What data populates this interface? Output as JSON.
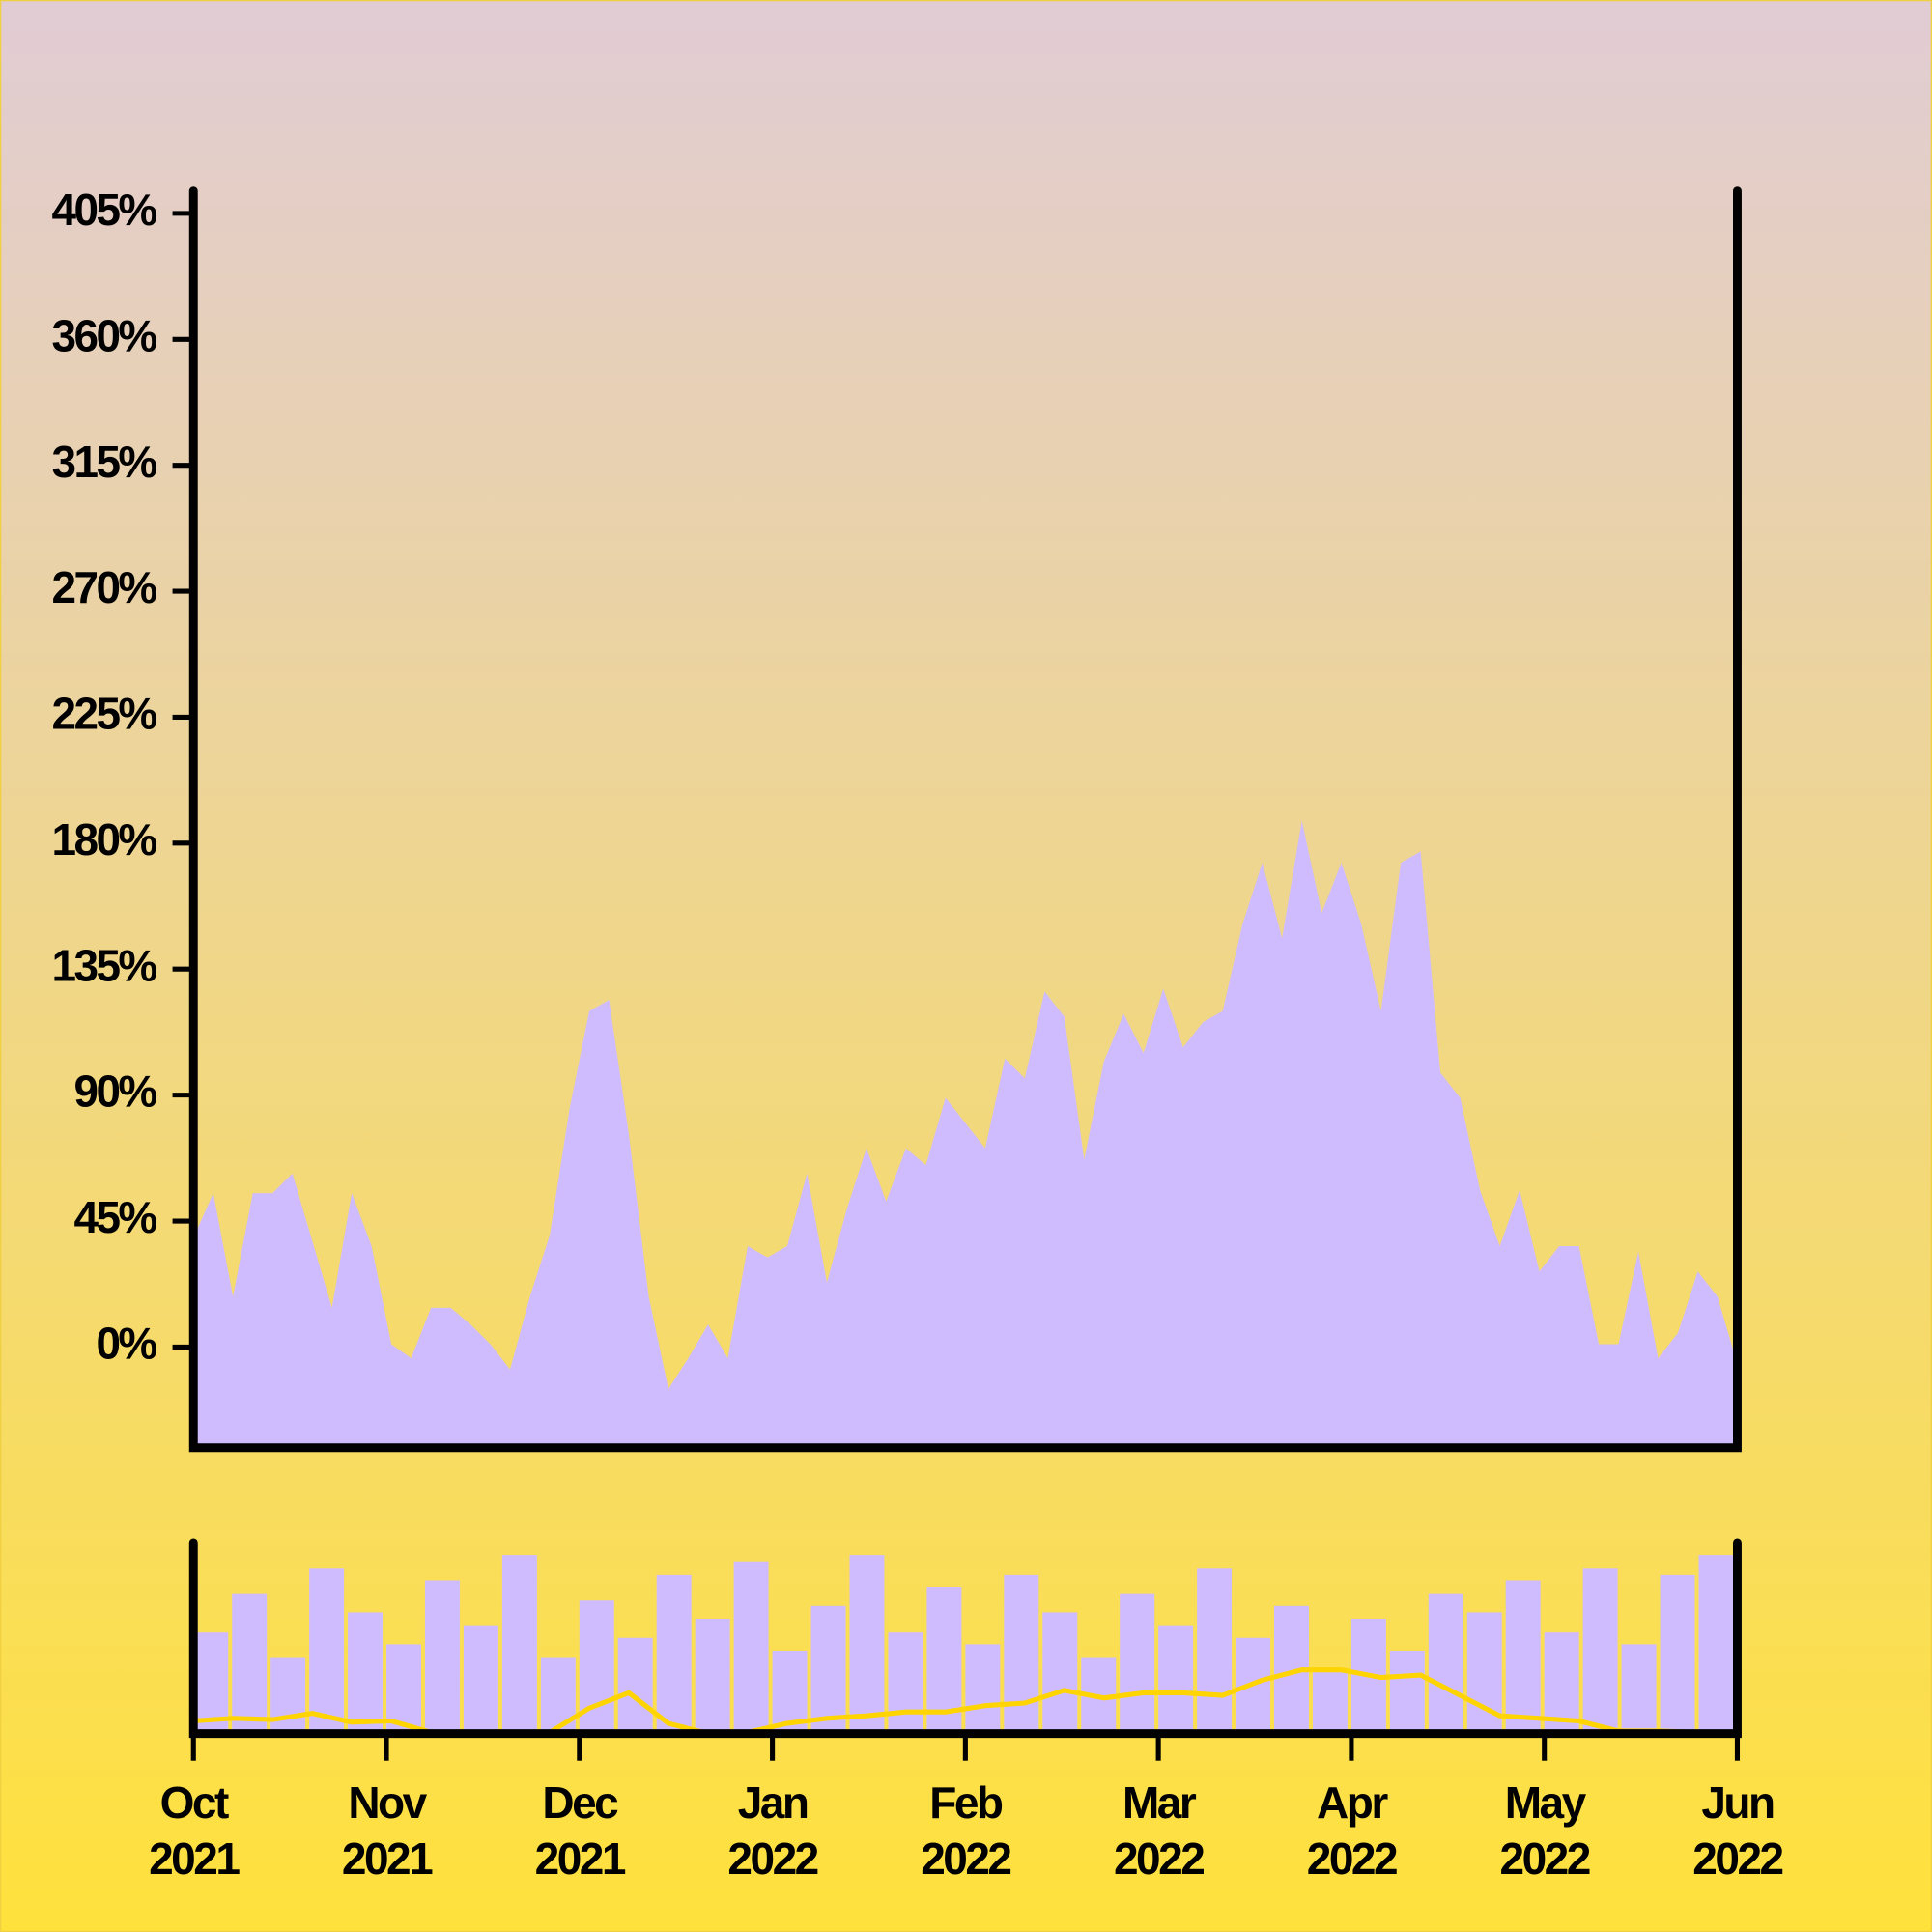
{
  "chart_data": [
    {
      "type": "area",
      "color": "#cfbcff",
      "xlim": [
        "2021-10",
        "2022-06"
      ],
      "xticks": [
        {
          "value": "2021-10",
          "label": "Oct 2021"
        },
        {
          "value": "2021-11",
          "label": "Nov 2021"
        },
        {
          "value": "2021-12",
          "label": "Dec 2021"
        },
        {
          "value": "2022-01",
          "label": "Jan 2022"
        },
        {
          "value": "2022-02",
          "label": "Feb 2022"
        },
        {
          "value": "2022-03",
          "label": "Mar 2022"
        },
        {
          "value": "2022-04",
          "label": "Apr 2022"
        },
        {
          "value": "2022-05",
          "label": "May 2022"
        },
        {
          "value": "2022-06",
          "label": "Jun 2022"
        }
      ],
      "ylim": [
        -36,
        413
      ],
      "yticks": [
        {
          "value": 0,
          "label": "0%"
        },
        {
          "value": 45,
          "label": "45%"
        },
        {
          "value": 90,
          "label": "90%"
        },
        {
          "value": 135,
          "label": "135%"
        },
        {
          "value": 180,
          "label": "180%"
        },
        {
          "value": 225,
          "label": "225%"
        },
        {
          "value": 270,
          "label": "270%"
        },
        {
          "value": 315,
          "label": "315%"
        },
        {
          "value": 360,
          "label": "360%"
        },
        {
          "value": 405,
          "label": "405%"
        }
      ],
      "values": [
        39,
        55,
        18,
        55,
        55,
        62,
        38,
        14,
        55,
        36,
        1,
        -4,
        14,
        14,
        8,
        1,
        -8,
        18,
        40,
        85,
        120,
        124,
        76,
        18,
        -15,
        -4,
        8,
        -4,
        36,
        32,
        36,
        62,
        23,
        49,
        71,
        52,
        71,
        65,
        89,
        80,
        71,
        103,
        96,
        127,
        118,
        67,
        102,
        119,
        105,
        128,
        107,
        116,
        120,
        151,
        173,
        146,
        188,
        155,
        173,
        151,
        120,
        173,
        177,
        98,
        89,
        56,
        36,
        56,
        27,
        36,
        36,
        1,
        1,
        34,
        -4,
        5,
        27,
        18,
        -6
      ]
    },
    {
      "type": "navigator",
      "ylim": [
        0,
        150
      ],
      "series": [
        {
          "color": "#cfbcff",
          "values": [
            80,
            110,
            60,
            130,
            95,
            70,
            120,
            85,
            140,
            60,
            105,
            75,
            125,
            90,
            135,
            65,
            100,
            140,
            80,
            115,
            70,
            125,
            95,
            60,
            110,
            85,
            130,
            75,
            100,
            50,
            90,
            65,
            110,
            95,
            120,
            80,
            130,
            70,
            125,
            140
          ]
        },
        {
          "color": "#ffd400",
          "values": [
            10,
            12,
            11,
            16,
            9,
            10,
            1,
            1,
            1,
            1,
            20,
            32,
            8,
            0,
            1,
            8,
            12,
            14,
            17,
            17,
            22,
            24,
            34,
            28,
            32,
            32,
            30,
            42,
            50,
            50,
            44,
            46,
            30,
            14,
            12,
            10,
            2,
            2,
            1,
            1
          ]
        }
      ]
    }
  ]
}
